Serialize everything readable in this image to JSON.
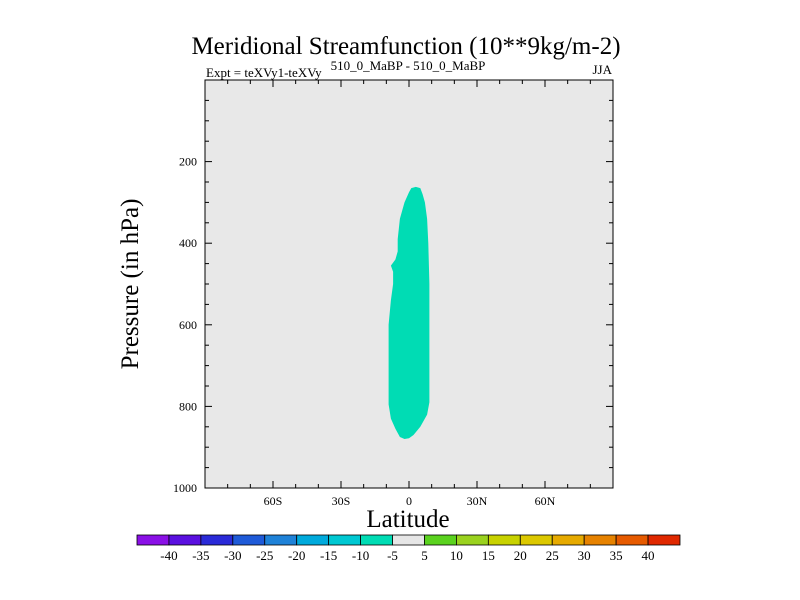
{
  "chart_data": {
    "type": "contour",
    "title": "Meridional Streamfunction (10**9kg/m-2)",
    "experiment_label": "Expt = teXVy1-teXVy",
    "comparison_label": "510_0_MaBP - 510_0_MaBP",
    "season": "JJA",
    "xlabel": "Latitude",
    "ylabel": "Pressure (in hPa)",
    "xlim": [
      -90,
      90
    ],
    "ylim": [
      1000,
      0
    ],
    "xticks": [
      {
        "value": -60,
        "label": "60S"
      },
      {
        "value": -30,
        "label": "30S"
      },
      {
        "value": 0,
        "label": "0"
      },
      {
        "value": 30,
        "label": "30N"
      },
      {
        "value": 60,
        "label": "60N"
      }
    ],
    "yticks": [
      {
        "value": 200,
        "label": "200"
      },
      {
        "value": 400,
        "label": "400"
      },
      {
        "value": 600,
        "label": "600"
      },
      {
        "value": 800,
        "label": "800"
      },
      {
        "value": 1000,
        "label": "1000"
      }
    ],
    "background_color": "#e8e8e8",
    "filled_region": {
      "level_range": [
        -10,
        -5
      ],
      "color": "#00dcb4",
      "outline": [
        [
          3,
          262
        ],
        [
          5,
          265
        ],
        [
          6,
          280
        ],
        [
          7,
          300
        ],
        [
          8,
          340
        ],
        [
          8.5,
          400
        ],
        [
          9,
          500
        ],
        [
          9,
          600
        ],
        [
          9,
          700
        ],
        [
          9,
          790
        ],
        [
          8,
          820
        ],
        [
          5,
          850
        ],
        [
          2,
          870
        ],
        [
          0,
          878
        ],
        [
          -2,
          880
        ],
        [
          -4,
          875
        ],
        [
          -6,
          855
        ],
        [
          -8,
          830
        ],
        [
          -9,
          795
        ],
        [
          -9,
          700
        ],
        [
          -9,
          600
        ],
        [
          -8,
          540
        ],
        [
          -7,
          500
        ],
        [
          -7,
          470
        ],
        [
          -8,
          455
        ],
        [
          -6,
          440
        ],
        [
          -5,
          420
        ],
        [
          -5,
          390
        ],
        [
          -4,
          340
        ],
        [
          -2,
          300
        ],
        [
          0,
          275
        ],
        [
          1,
          265
        ],
        [
          3,
          262
        ]
      ]
    },
    "colorbar": {
      "labels": [
        "-40",
        "-35",
        "-30",
        "-25",
        "-20",
        "-15",
        "-10",
        "-5",
        "5",
        "10",
        "15",
        "20",
        "25",
        "30",
        "35",
        "40"
      ],
      "colors": [
        "#8a10e6",
        "#5a10e0",
        "#2a2ad8",
        "#1e5ad8",
        "#1e82d8",
        "#00aadc",
        "#00c8d2",
        "#00dcb4",
        "#e6e6e6",
        "#5ad21e",
        "#9ad21e",
        "#c8d200",
        "#dcc800",
        "#e6aa00",
        "#e68200",
        "#e65a00",
        "#e02800"
      ]
    }
  }
}
